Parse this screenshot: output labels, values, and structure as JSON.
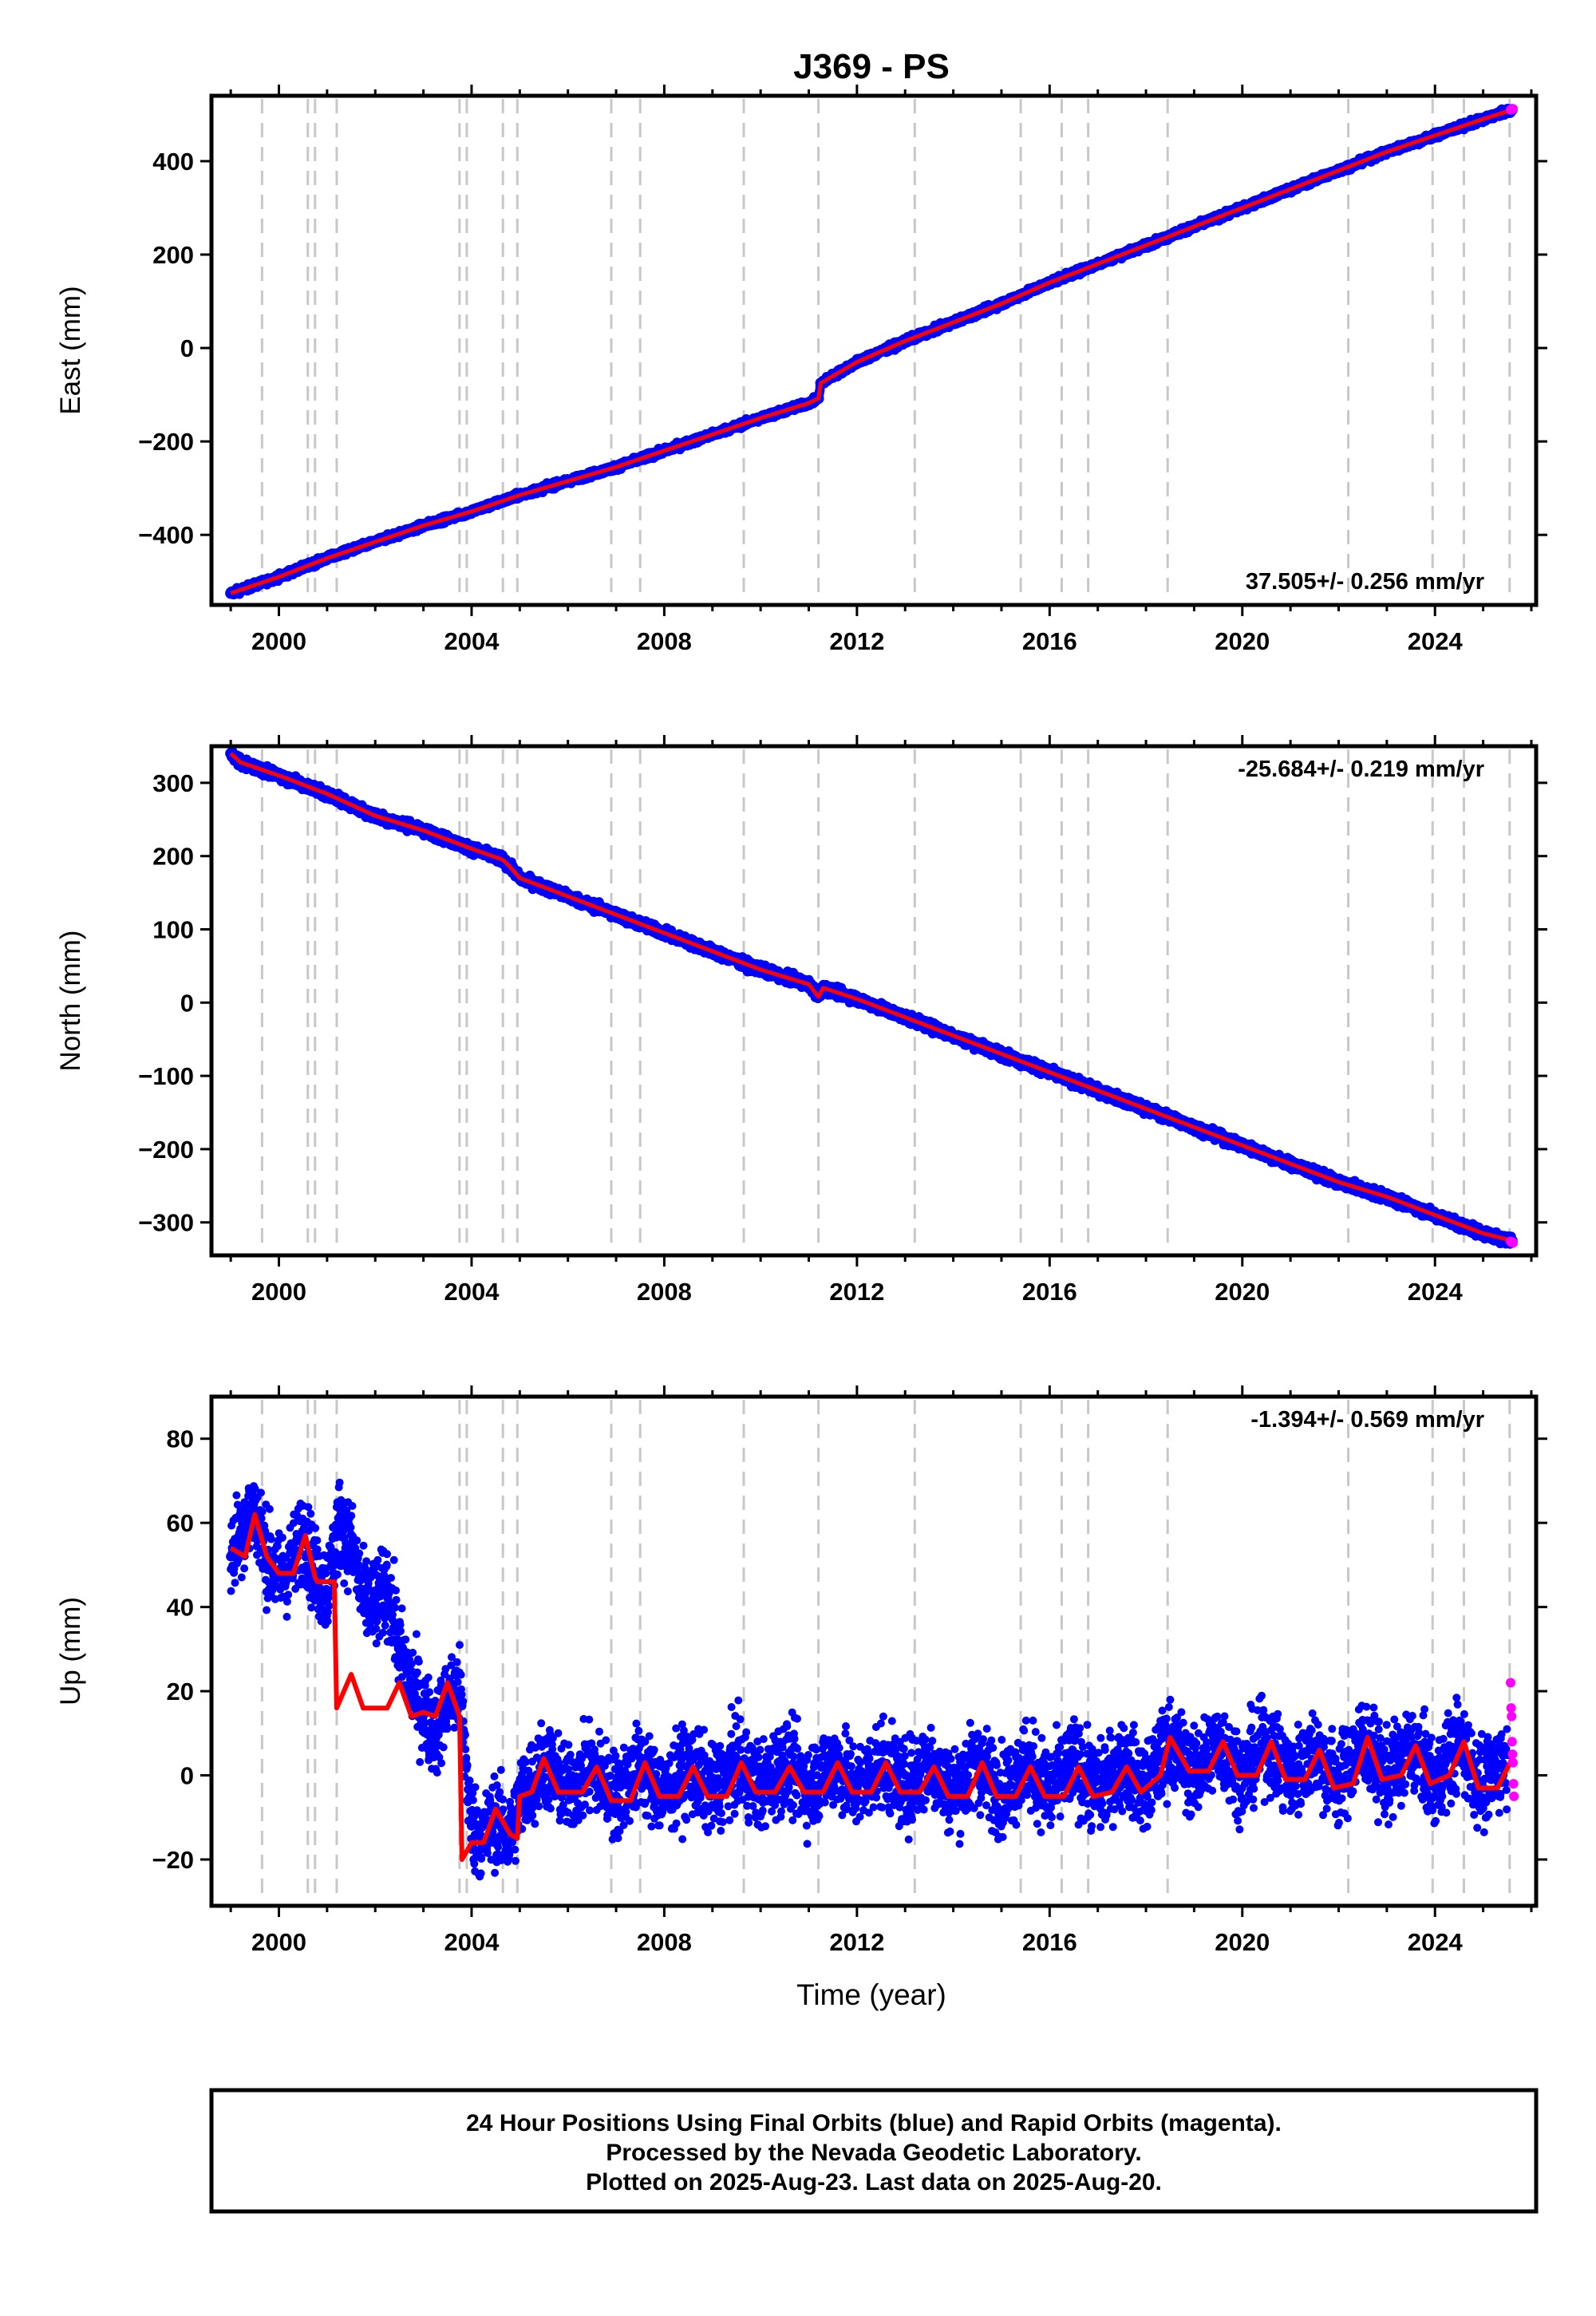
{
  "figure": {
    "title": "J369 - PS",
    "xlabel": "Time (year)",
    "footer": [
      "24 Hour Positions Using Final Orbits (blue) and Rapid Orbits (magenta).",
      "Processed by the Nevada Geodetic Laboratory.",
      "Plotted on 2025-Aug-23. Last data on 2025-Aug-20."
    ],
    "colors": {
      "final": "#0000ff",
      "rapid": "#ff00ff",
      "model": "#ff0000",
      "event_lines": "#c8c8c8"
    }
  },
  "chart_data": [
    {
      "type": "scatter",
      "ylabel": "East (mm)",
      "xlim": [
        1998.6,
        2026.1
      ],
      "ylim": [
        -550,
        540
      ],
      "xticks": [
        2000,
        2004,
        2008,
        2012,
        2016,
        2020,
        2024
      ],
      "yticks": [
        -400,
        -200,
        0,
        200,
        400
      ],
      "rate": "37.505+/- 0.256 mm/yr",
      "rate_position": "bottom-right",
      "grid": false,
      "events": [
        1999.65,
        2000.6,
        2000.75,
        2001.2,
        2003.75,
        2003.9,
        2004.65,
        2004.95,
        2006.9,
        2007.5,
        2009.65,
        2011.2,
        2013.2,
        2015.4,
        2016.25,
        2016.8,
        2018.45,
        2022.2,
        2023.95,
        2024.6,
        2025.55
      ],
      "series": [
        {
          "style": "final",
          "x": [
            1999.0,
            2000.0,
            2001.0,
            2002.0,
            2003.0,
            2004.0,
            2005.0,
            2006.0,
            2007.0,
            2008.0,
            2009.0,
            2010.0,
            2011.0,
            2011.2,
            2011.25,
            2012.0,
            2013.0,
            2014.0,
            2015.0,
            2016.0,
            2017.0,
            2018.0,
            2019.0,
            2020.0,
            2021.0,
            2022.0,
            2023.0,
            2024.0,
            2025.0,
            2025.6
          ],
          "y": [
            -525,
            -490,
            -450,
            -415,
            -380,
            -350,
            -315,
            -285,
            -255,
            -220,
            -185,
            -150,
            -118,
            -108,
            -75,
            -30,
            15,
            55,
            95,
            140,
            180,
            220,
            260,
            300,
            340,
            380,
            420,
            455,
            490,
            510
          ]
        },
        {
          "style": "model",
          "x": [
            1999.0,
            2000.0,
            2001.0,
            2002.0,
            2003.0,
            2004.0,
            2005.0,
            2006.0,
            2007.0,
            2008.0,
            2009.0,
            2010.0,
            2011.0,
            2011.2,
            2011.25,
            2012.0,
            2013.0,
            2014.0,
            2015.0,
            2016.0,
            2017.0,
            2018.0,
            2019.0,
            2020.0,
            2021.0,
            2022.0,
            2023.0,
            2024.0,
            2025.0,
            2025.6
          ],
          "y": [
            -525,
            -490,
            -450,
            -415,
            -380,
            -350,
            -315,
            -285,
            -255,
            -220,
            -185,
            -150,
            -118,
            -108,
            -75,
            -30,
            15,
            55,
            95,
            140,
            180,
            220,
            260,
            300,
            340,
            380,
            420,
            455,
            490,
            510
          ]
        },
        {
          "style": "rapid",
          "x": [
            2025.57,
            2025.59,
            2025.61,
            2025.62
          ],
          "y": [
            510,
            511,
            512,
            512
          ]
        }
      ]
    },
    {
      "type": "scatter",
      "ylabel": "North (mm)",
      "xlim": [
        1998.6,
        2026.1
      ],
      "ylim": [
        -345,
        350
      ],
      "xticks": [
        2000,
        2004,
        2008,
        2012,
        2016,
        2020,
        2024
      ],
      "yticks": [
        -300,
        -200,
        -100,
        0,
        100,
        200,
        300
      ],
      "rate": "-25.684+/- 0.219 mm/yr",
      "rate_position": "top-right",
      "grid": false,
      "events": [
        1999.65,
        2000.6,
        2000.75,
        2001.2,
        2003.75,
        2003.9,
        2004.65,
        2004.95,
        2006.9,
        2007.5,
        2009.65,
        2011.2,
        2013.2,
        2015.4,
        2016.25,
        2016.8,
        2018.45,
        2022.2,
        2023.95,
        2024.6,
        2025.55
      ],
      "series": [
        {
          "style": "final",
          "x": [
            1999.0,
            1999.2,
            2000.0,
            2001.0,
            2002.0,
            2003.0,
            2004.0,
            2004.65,
            2004.8,
            2005.0,
            2006.0,
            2007.0,
            2008.0,
            2009.0,
            2010.0,
            2011.0,
            2011.2,
            2011.3,
            2012.0,
            2013.0,
            2014.0,
            2015.0,
            2016.0,
            2017.0,
            2018.0,
            2019.0,
            2020.0,
            2021.0,
            2022.0,
            2023.0,
            2024.0,
            2025.0,
            2025.6
          ],
          "y": [
            340,
            328,
            310,
            285,
            255,
            235,
            210,
            195,
            185,
            170,
            145,
            120,
            95,
            70,
            45,
            25,
            8,
            20,
            5,
            -20,
            -45,
            -70,
            -95,
            -120,
            -145,
            -170,
            -195,
            -220,
            -245,
            -265,
            -290,
            -315,
            -325
          ]
        },
        {
          "style": "model",
          "x": [
            1999.0,
            1999.2,
            2000.0,
            2001.0,
            2002.0,
            2003.0,
            2004.0,
            2004.65,
            2004.8,
            2005.0,
            2006.0,
            2007.0,
            2008.0,
            2009.0,
            2010.0,
            2011.0,
            2011.2,
            2011.3,
            2012.0,
            2013.0,
            2014.0,
            2015.0,
            2016.0,
            2017.0,
            2018.0,
            2019.0,
            2020.0,
            2021.0,
            2022.0,
            2023.0,
            2024.0,
            2025.0,
            2025.6
          ],
          "y": [
            340,
            328,
            310,
            285,
            255,
            235,
            210,
            195,
            185,
            170,
            145,
            120,
            95,
            70,
            45,
            25,
            8,
            20,
            5,
            -20,
            -45,
            -70,
            -95,
            -120,
            -145,
            -170,
            -195,
            -220,
            -245,
            -265,
            -290,
            -315,
            -325
          ]
        },
        {
          "style": "rapid",
          "x": [
            2025.57,
            2025.59,
            2025.61,
            2025.62
          ],
          "y": [
            -326,
            -327,
            -327,
            -328
          ]
        }
      ]
    },
    {
      "type": "scatter",
      "ylabel": "Up (mm)",
      "xlim": [
        1998.6,
        2026.1
      ],
      "ylim": [
        -31,
        90
      ],
      "xticks": [
        2000,
        2004,
        2008,
        2012,
        2016,
        2020,
        2024
      ],
      "yticks": [
        -20,
        0,
        20,
        40,
        60,
        80
      ],
      "rate": "-1.394+/- 0.569 mm/yr",
      "rate_position": "top-right",
      "grid": false,
      "events": [
        1999.65,
        2000.6,
        2000.75,
        2001.2,
        2003.75,
        2003.9,
        2004.65,
        2004.95,
        2006.9,
        2007.5,
        2009.65,
        2011.2,
        2013.2,
        2015.4,
        2016.25,
        2016.8,
        2018.45,
        2022.2,
        2023.95,
        2024.6,
        2025.55
      ],
      "series": [
        {
          "style": "final",
          "x": [
            1999.0,
            1999.25,
            1999.5,
            1999.75,
            2000.0,
            2000.25,
            2000.5,
            2000.75,
            2001.0,
            2001.25,
            2001.5,
            2001.75,
            2002.0,
            2002.25,
            2002.5,
            2002.75,
            2003.0,
            2003.25,
            2003.5,
            2003.75,
            2004.0,
            2004.25,
            2004.5,
            2004.75,
            2005.0,
            2005.5,
            2006.0,
            2006.5,
            2007.0,
            2007.5,
            2008.0,
            2008.5,
            2009.0,
            2009.5,
            2010.0,
            2010.5,
            2011.0,
            2011.5,
            2012.0,
            2012.5,
            2013.0,
            2013.5,
            2014.0,
            2014.5,
            2015.0,
            2015.5,
            2016.0,
            2016.5,
            2017.0,
            2017.5,
            2018.0,
            2018.5,
            2019.0,
            2019.5,
            2020.0,
            2020.5,
            2021.0,
            2021.5,
            2022.0,
            2022.5,
            2023.0,
            2023.5,
            2024.0,
            2024.5,
            2025.0,
            2025.5
          ],
          "y": [
            52,
            60,
            63,
            52,
            47,
            50,
            58,
            48,
            44,
            60,
            55,
            42,
            40,
            45,
            30,
            22,
            15,
            10,
            18,
            20,
            -12,
            -15,
            -10,
            -16,
            -6,
            3,
            -4,
            2,
            -5,
            2,
            -5,
            2,
            -4,
            3,
            -3,
            3,
            -3,
            3,
            -3,
            3,
            -3,
            3,
            -4,
            3,
            -4,
            3,
            -4,
            3,
            -4,
            3,
            -3,
            8,
            0,
            8,
            0,
            8,
            -1,
            6,
            -2,
            8,
            -1,
            7,
            -2,
            8,
            -3,
            5
          ]
        },
        {
          "style": "model",
          "x": [
            1999.0,
            1999.3,
            1999.5,
            1999.75,
            2000.0,
            2000.3,
            2000.55,
            2000.75,
            2000.8,
            2001.15,
            2001.2,
            2001.35,
            2001.5,
            2001.75,
            2002.0,
            2002.25,
            2002.5,
            2002.75,
            2003.0,
            2003.25,
            2003.5,
            2003.75,
            2003.8,
            2003.95,
            2004.0,
            2004.25,
            2004.5,
            2004.8,
            2004.95,
            2005.0,
            2005.25,
            2005.5,
            2005.8,
            2006.3,
            2006.6,
            2006.9,
            2007.3,
            2007.6,
            2007.9,
            2008.3,
            2008.6,
            2008.9,
            2009.3,
            2009.6,
            2009.9,
            2010.3,
            2010.6,
            2010.9,
            2011.3,
            2011.6,
            2011.9,
            2012.3,
            2012.6,
            2012.9,
            2013.3,
            2013.6,
            2013.9,
            2014.3,
            2014.6,
            2014.9,
            2015.3,
            2015.6,
            2015.9,
            2016.3,
            2016.6,
            2016.9,
            2017.3,
            2017.6,
            2017.9,
            2018.3,
            2018.5,
            2018.9,
            2019.3,
            2019.6,
            2019.9,
            2020.3,
            2020.6,
            2020.9,
            2021.3,
            2021.6,
            2021.9,
            2022.3,
            2022.6,
            2022.9,
            2023.3,
            2023.6,
            2023.9,
            2024.3,
            2024.6,
            2024.9,
            2025.3,
            2025.6
          ],
          "y": [
            54,
            52,
            62,
            52,
            48,
            48,
            57,
            47,
            46,
            46,
            16,
            20,
            24,
            16,
            16,
            16,
            22,
            14,
            15,
            14,
            22,
            14,
            -20,
            -17,
            -16,
            -16,
            -8,
            -14,
            -15,
            -5,
            -4,
            4,
            -4,
            -4,
            2,
            -6,
            -6,
            3,
            -5,
            -5,
            2,
            -5,
            -5,
            3,
            -4,
            -4,
            2,
            -4,
            -4,
            3,
            -4,
            -4,
            3,
            -4,
            -4,
            2,
            -5,
            -5,
            3,
            -5,
            -5,
            2,
            -5,
            -5,
            2,
            -5,
            -4,
            2,
            -4,
            0,
            9,
            1,
            1,
            8,
            0,
            0,
            8,
            -1,
            -1,
            6,
            -3,
            -2,
            9,
            -1,
            0,
            7,
            -2,
            0,
            8,
            -3,
            -3,
            4
          ]
        },
        {
          "style": "rapid",
          "x": [
            2025.57,
            2025.58,
            2025.59,
            2025.6,
            2025.61,
            2025.62,
            2025.63,
            2025.64
          ],
          "y": [
            22,
            16,
            14,
            8,
            5,
            3,
            -2,
            -5
          ]
        }
      ]
    }
  ]
}
